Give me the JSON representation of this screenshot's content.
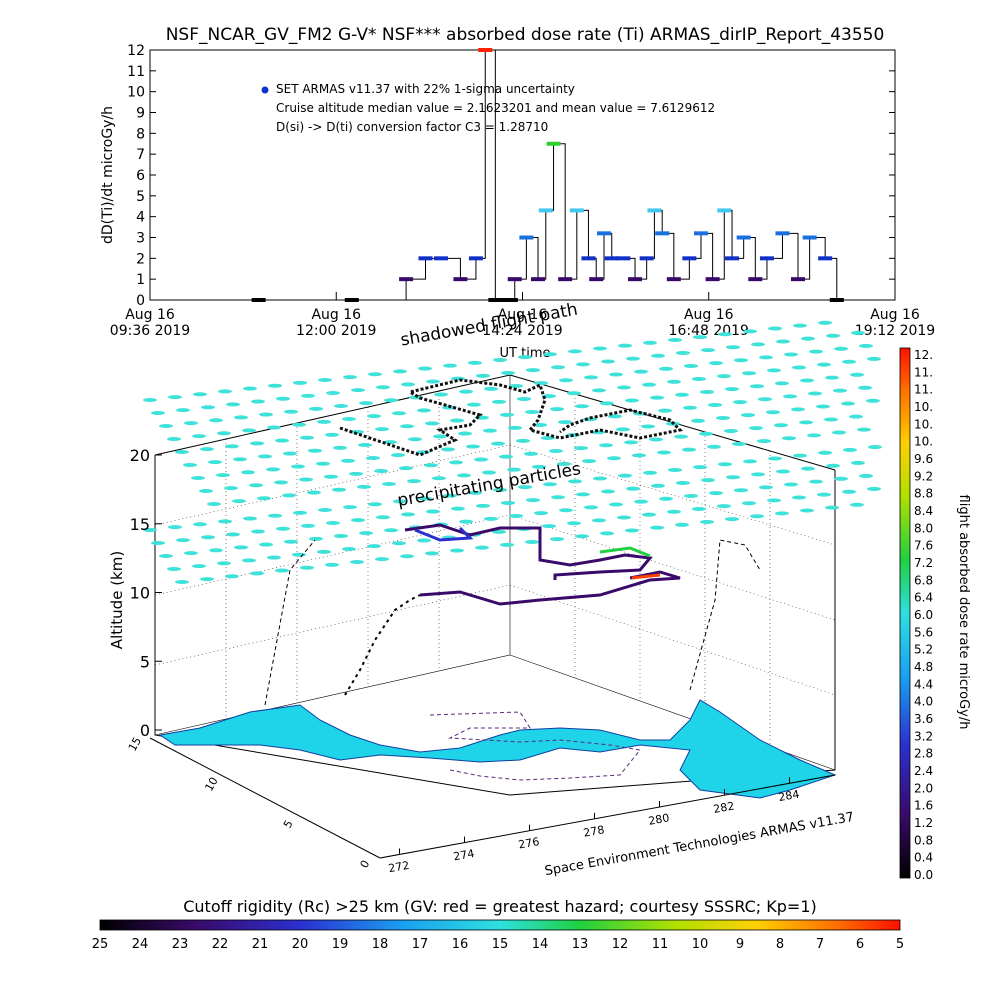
{
  "title": "NSF_NCAR_GV_FM2 G-V* NSF*** absorbed dose rate (Ti) ARMAS_dirIP_Report_43550",
  "top_chart": {
    "ylabel": "dD(Ti)/dt microGy/h",
    "xlabel": "UT time",
    "ylim": [
      0,
      12
    ],
    "y_ticks": [
      "0",
      "1",
      "2",
      "3",
      "4",
      "5",
      "6",
      "7",
      "8",
      "9",
      "10",
      "11",
      "12"
    ],
    "x_ticks": [
      {
        "line1": "Aug 16",
        "line2": "09:36 2019"
      },
      {
        "line1": "Aug 16",
        "line2": "12:00 2019"
      },
      {
        "line1": "Aug 16",
        "line2": "14:24 2019"
      },
      {
        "line1": "Aug 16",
        "line2": "16:48 2019"
      },
      {
        "line1": "Aug 16",
        "line2": "19:12 2019"
      }
    ],
    "legend": [
      "SET ARMAS v11.37 with 22% 1-sigma uncertainty",
      "Cruise altitude median value = 2.1623201 and mean value = 7.6129612",
      "D(si) -> D(ti) conversion factor C3 = 1.28710"
    ],
    "marker_color": "#1030c8",
    "step_color": "#3a0a6a"
  },
  "chart_data": [
    {
      "type": "line",
      "title": "NSF_NCAR_GV_FM2 G-V* NSF*** absorbed dose rate (Ti) ARMAS_dirIP_Report_43550",
      "xlabel": "UT time",
      "ylabel": "dD(Ti)/dt microGy/h",
      "ylim": [
        0,
        12
      ],
      "x_units": "hours UT, Aug 16 2019",
      "xlim": [
        9.6,
        19.2
      ],
      "series": [
        {
          "name": "SET ARMAS v11.37 with 22% 1-sigma uncertainty",
          "x": [
            11.0,
            12.2,
            12.9,
            13.15,
            13.35,
            13.6,
            13.8,
            13.92,
            14.05,
            14.18,
            14.25,
            14.3,
            14.45,
            14.6,
            14.7,
            14.8,
            14.95,
            15.1,
            15.25,
            15.35,
            15.45,
            15.55,
            15.7,
            15.85,
            16.0,
            16.1,
            16.2,
            16.35,
            16.55,
            16.7,
            16.85,
            17.0,
            17.1,
            17.25,
            17.4,
            17.55,
            17.75,
            17.95,
            18.1,
            18.3,
            18.45
          ],
          "y": [
            0,
            0,
            1,
            2,
            2,
            1,
            2,
            12,
            0,
            0,
            0,
            1,
            3,
            1,
            4.3,
            7.5,
            1,
            4.3,
            2,
            1,
            3.2,
            2,
            2,
            1,
            2,
            4.3,
            3.2,
            1,
            2,
            3.2,
            1,
            4.3,
            2,
            3,
            1,
            2,
            3.2,
            1,
            3,
            2,
            0
          ]
        }
      ]
    },
    {
      "type": "scatter",
      "title": "",
      "xlabel": "",
      "ylabel": "Altitude (km)",
      "zlim": [
        0,
        20
      ],
      "z_ticks": [
        "0",
        "5",
        "10",
        "15",
        "20"
      ],
      "longitude_ticks": [
        "272",
        "274",
        "276",
        "278",
        "280",
        "282",
        "284"
      ],
      "latitude_ticks": [
        "0",
        "5",
        "10",
        "15"
      ],
      "annotations": [
        "shadowed flight path",
        "precipitating particles"
      ]
    }
  ],
  "scene": {
    "annotation_shadow": "shadowed flight path",
    "annotation_particles": "precipitating particles",
    "credit": "Space Environment Technologies ARMAS v11.37",
    "particle_color": "#3fe2d9",
    "land_color": "#1fd3e8"
  },
  "colorbar_right": {
    "label": "flight absorbed dose rate microGy/h",
    "ticks": [
      "12.",
      "11.",
      "11.",
      "10.",
      "10.",
      "10.",
      "9.6",
      "9.2",
      "8.8",
      "8.4",
      "8.0",
      "7.6",
      "7.2",
      "6.8",
      "6.4",
      "6.0",
      "5.6",
      "5.2",
      "4.8",
      "4.4",
      "4.0",
      "3.6",
      "3.2",
      "2.8",
      "2.4",
      "2.0",
      "1.6",
      "1.2",
      "0.8",
      "0.4",
      "0.0"
    ]
  },
  "colorbar_bottom": {
    "label": "Cutoff rigidity (Rc) >25 km (GV: red = greatest hazard; courtesy SSSRC; Kp=1)",
    "ticks": [
      "25",
      "24",
      "23",
      "22",
      "21",
      "20",
      "19",
      "18",
      "17",
      "16",
      "15",
      "14",
      "13",
      "12",
      "11",
      "10",
      "9",
      "8",
      "7",
      "6",
      "5"
    ]
  }
}
